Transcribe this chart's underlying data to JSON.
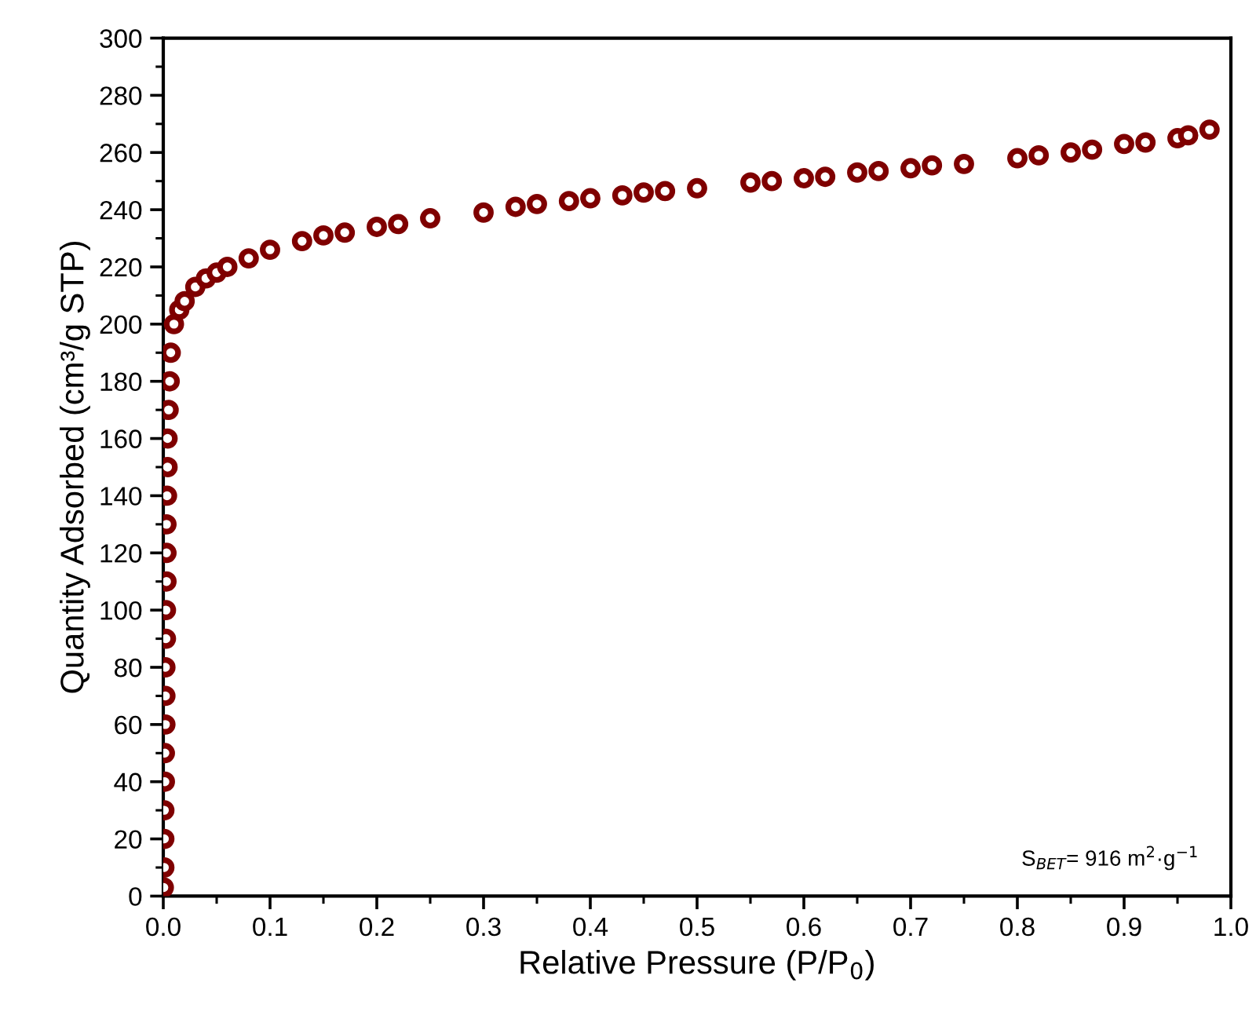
{
  "chart_data": {
    "type": "scatter",
    "xlabel": "Relative Pressure (P/P$_{0}$)",
    "ylabel": "Quantity Adsorbed (cm³/g STP)",
    "xlim": [
      0.0,
      1.0
    ],
    "ylim": [
      0,
      300
    ],
    "xticks": [
      {
        "value": 0.0,
        "label": "0.0"
      },
      0.1,
      0.2,
      0.3,
      0.4,
      0.5,
      0.6,
      0.7,
      0.8,
      0.9,
      {
        "value": 1.0,
        "label": "1.0"
      }
    ],
    "yticks": [
      0,
      20,
      40,
      60,
      80,
      100,
      120,
      140,
      160,
      180,
      200,
      220,
      240,
      260,
      280,
      300
    ],
    "grid": false,
    "marker": "circle",
    "series": [
      {
        "color": "#7f0000",
        "x": [
          0.0005,
          0.001,
          0.001,
          0.001,
          0.0015,
          0.0015,
          0.002,
          0.002,
          0.002,
          0.0025,
          0.0025,
          0.003,
          0.003,
          0.003,
          0.0035,
          0.004,
          0.004,
          0.005,
          0.006,
          0.007,
          0.01,
          0.015,
          0.02,
          0.03,
          0.04,
          0.05,
          0.06,
          0.08,
          0.1,
          0.13,
          0.15,
          0.17,
          0.2,
          0.22,
          0.25,
          0.3,
          0.33,
          0.35,
          0.38,
          0.4,
          0.43,
          0.45,
          0.47,
          0.5,
          0.55,
          0.57,
          0.6,
          0.62,
          0.65,
          0.67,
          0.7,
          0.72,
          0.75,
          0.8,
          0.82,
          0.85,
          0.87,
          0.9,
          0.92,
          0.95,
          0.96,
          0.98
        ],
        "values": [
          3,
          10,
          20,
          30,
          40,
          50,
          60,
          70,
          80,
          90,
          100,
          110,
          120,
          130,
          140,
          150,
          160,
          170,
          180,
          190,
          200,
          205,
          208,
          213,
          216,
          218,
          220,
          223,
          226,
          229,
          231,
          232,
          234,
          235,
          237,
          239,
          241,
          242,
          243,
          244,
          245,
          246,
          246.5,
          247.5,
          249.5,
          250,
          251,
          251.5,
          253,
          253.5,
          254.5,
          255.5,
          256,
          258,
          259,
          260,
          261,
          263,
          263.5,
          265,
          266,
          268
        ]
      }
    ],
    "annotations": [
      "S$_{BET}$= 916 m$^{2}$·g$^{−1}$"
    ]
  }
}
